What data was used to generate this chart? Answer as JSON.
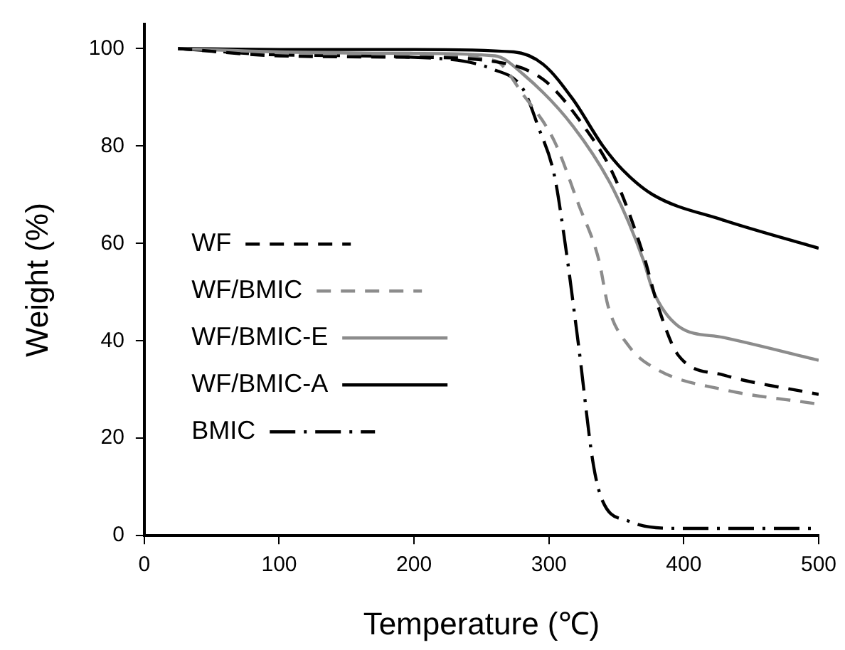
{
  "chart_data": {
    "type": "line",
    "xlabel": "Temperature (℃)",
    "ylabel": "Weight (%)",
    "xlim": [
      0,
      500
    ],
    "ylim": [
      0,
      105
    ],
    "xticks": [
      0,
      100,
      200,
      300,
      400,
      500
    ],
    "yticks": [
      0,
      20,
      40,
      60,
      80,
      100
    ],
    "grid": false,
    "legend": "left",
    "marker": "none",
    "series": [
      {
        "name": "WF",
        "color": "#000000",
        "line_style": "dashed",
        "x": [
          25,
          100,
          200,
          255,
          296,
          326,
          348,
          370,
          381,
          396,
          429,
          500
        ],
        "values": [
          100,
          98.5,
          98.2,
          97.5,
          93.6,
          84,
          74,
          57.7,
          47,
          37,
          33,
          29
        ]
      },
      {
        "name": "WF/BMIC",
        "color": "#8c8c8c",
        "line_style": "dashed",
        "x": [
          25,
          100,
          200,
          260,
          281,
          304,
          322,
          337,
          344,
          359,
          381,
          429,
          500
        ],
        "values": [
          100,
          99,
          98.7,
          97.5,
          90.5,
          81,
          68,
          56.6,
          47,
          39,
          34,
          30,
          27
        ]
      },
      {
        "name": "WF/BMIC-E",
        "color": "#8c8c8c",
        "line_style": "solid",
        "x": [
          25,
          100,
          200,
          260,
          281,
          318,
          348,
          370,
          377,
          396,
          429,
          500
        ],
        "values": [
          100,
          99.3,
          99,
          98.5,
          94.7,
          84,
          71,
          56.6,
          50.4,
          43,
          40.7,
          36
        ]
      },
      {
        "name": "WF/BMIC-A",
        "color": "#000000",
        "line_style": "solid",
        "x": [
          25,
          100,
          200,
          274,
          296,
          318,
          340,
          355,
          377,
          429,
          500
        ],
        "values": [
          100,
          99.8,
          99.8,
          99.3,
          96.7,
          89.5,
          80,
          75,
          70,
          64.8,
          59
        ]
      },
      {
        "name": "BMIC",
        "color": "#000000",
        "line_style": "dashdot",
        "x": [
          25,
          100,
          200,
          259,
          281,
          292,
          304,
          311,
          322,
          333,
          340,
          359,
          396,
          500
        ],
        "values": [
          100,
          98.7,
          98.2,
          95.7,
          91.6,
          84,
          74,
          62,
          39,
          14.5,
          7,
          3,
          1.5,
          1.5
        ]
      }
    ]
  }
}
